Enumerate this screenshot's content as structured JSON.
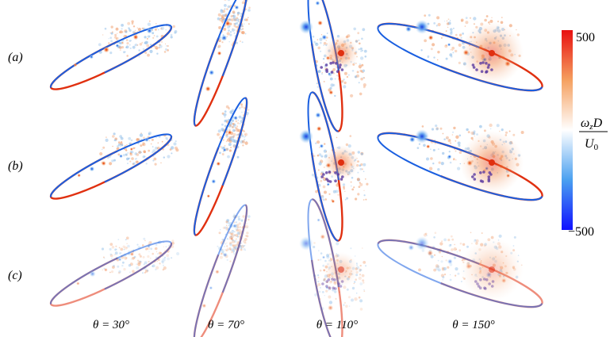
{
  "figure": {
    "rows": [
      {
        "label": "(a)"
      },
      {
        "label": "(b)"
      },
      {
        "label": "(c)"
      }
    ],
    "columns": [
      {
        "label": "θ = 30°",
        "angle_deg": 30
      },
      {
        "label": "θ = 70°",
        "angle_deg": 70
      },
      {
        "label": "θ = 110°",
        "angle_deg": 110
      },
      {
        "label": "θ = 150°",
        "angle_deg": 150
      }
    ],
    "colorbar": {
      "label_numerator": "ω_z D",
      "label_denominator": "U_0",
      "max_label": "500",
      "min_label": "−500",
      "range": [
        -500,
        500
      ],
      "colormap": [
        "#1010ff",
        "#4aa0f0",
        "#ffffff",
        "#f5a060",
        "#e81010"
      ]
    },
    "colors": {
      "positive_vorticity": "#e03010",
      "negative_vorticity": "#1a5fe0",
      "wake_orange": "#f0a070",
      "wake_blue": "#8fbde8",
      "vortex_purple": "#5a3aa0"
    }
  }
}
